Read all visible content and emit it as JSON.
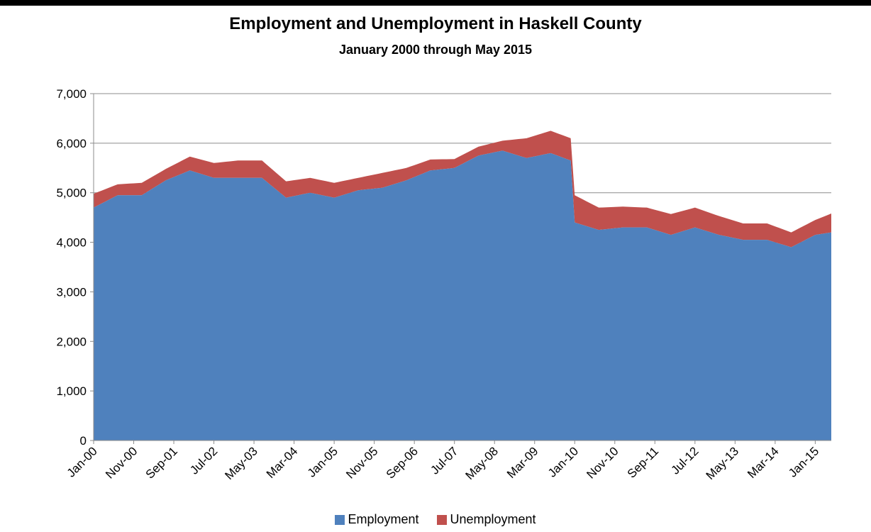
{
  "chart_data": {
    "type": "area",
    "stacked": true,
    "title": "Employment and Unemployment in Haskell County",
    "subtitle": "January 2000 through May 2015",
    "xlabel": "",
    "ylabel": "",
    "ylim": [
      0,
      7000
    ],
    "y_ticks": [
      "0",
      "1,000",
      "2,000",
      "3,000",
      "4,000",
      "5,000",
      "6,000",
      "7,000"
    ],
    "x_tick_labels": [
      "Jan-00",
      "Nov-00",
      "Sep-01",
      "Jul-02",
      "May-03",
      "Mar-04",
      "Jan-05",
      "Nov-05",
      "Sep-06",
      "Jul-07",
      "May-08",
      "Mar-09",
      "Jan-10",
      "Nov-10",
      "Sep-11",
      "Jul-12",
      "May-13",
      "Mar-14",
      "Jan-15"
    ],
    "x_range": [
      "Jan-00",
      "May-15"
    ],
    "gridlines": "horizontal",
    "legend_position": "bottom",
    "colors": {
      "employment": "#4F81BD",
      "unemployment": "#C0504D"
    },
    "series": [
      {
        "name": "Employment",
        "approx_points": [
          [
            "Jan-00",
            4700
          ],
          [
            "Jul-00",
            4950
          ],
          [
            "Jan-01",
            4950
          ],
          [
            "Jul-01",
            5250
          ],
          [
            "Jan-02",
            5450
          ],
          [
            "Jul-02",
            5300
          ],
          [
            "Jan-03",
            5300
          ],
          [
            "Jul-03",
            5300
          ],
          [
            "Jan-04",
            4900
          ],
          [
            "Jul-04",
            5000
          ],
          [
            "Jan-05",
            4900
          ],
          [
            "Jul-05",
            5050
          ],
          [
            "Jan-06",
            5100
          ],
          [
            "Jul-06",
            5250
          ],
          [
            "Jan-07",
            5450
          ],
          [
            "Jul-07",
            5500
          ],
          [
            "Jan-08",
            5750
          ],
          [
            "Jul-08",
            5850
          ],
          [
            "Jan-09",
            5700
          ],
          [
            "Jul-09",
            5800
          ],
          [
            "Dec-09",
            5650
          ],
          [
            "Jan-10",
            4400
          ],
          [
            "Jul-10",
            4250
          ],
          [
            "Jan-11",
            4300
          ],
          [
            "Jul-11",
            4300
          ],
          [
            "Jan-12",
            4150
          ],
          [
            "Jul-12",
            4300
          ],
          [
            "Jan-13",
            4150
          ],
          [
            "Jul-13",
            4050
          ],
          [
            "Jan-14",
            4050
          ],
          [
            "Jul-14",
            3900
          ],
          [
            "Jan-15",
            4150
          ],
          [
            "May-15",
            4200
          ]
        ]
      },
      {
        "name": "Unemployment",
        "approx_points": [
          [
            "Jan-00",
            280
          ],
          [
            "Jul-00",
            220
          ],
          [
            "Jan-01",
            250
          ],
          [
            "Jul-01",
            230
          ],
          [
            "Jan-02",
            280
          ],
          [
            "Jul-02",
            300
          ],
          [
            "Jan-03",
            350
          ],
          [
            "Jul-03",
            350
          ],
          [
            "Jan-04",
            330
          ],
          [
            "Jul-04",
            300
          ],
          [
            "Jan-05",
            300
          ],
          [
            "Jul-05",
            250
          ],
          [
            "Jan-06",
            300
          ],
          [
            "Jul-06",
            250
          ],
          [
            "Jan-07",
            220
          ],
          [
            "Jul-07",
            180
          ],
          [
            "Jan-08",
            180
          ],
          [
            "Jul-08",
            200
          ],
          [
            "Jan-09",
            400
          ],
          [
            "Jul-09",
            450
          ],
          [
            "Dec-09",
            450
          ],
          [
            "Jan-10",
            550
          ],
          [
            "Jul-10",
            450
          ],
          [
            "Jan-11",
            420
          ],
          [
            "Jul-11",
            400
          ],
          [
            "Jan-12",
            420
          ],
          [
            "Jul-12",
            400
          ],
          [
            "Jan-13",
            380
          ],
          [
            "Jul-13",
            330
          ],
          [
            "Jan-14",
            330
          ],
          [
            "Jul-14",
            300
          ],
          [
            "Jan-15",
            300
          ],
          [
            "May-15",
            380
          ]
        ]
      }
    ]
  }
}
